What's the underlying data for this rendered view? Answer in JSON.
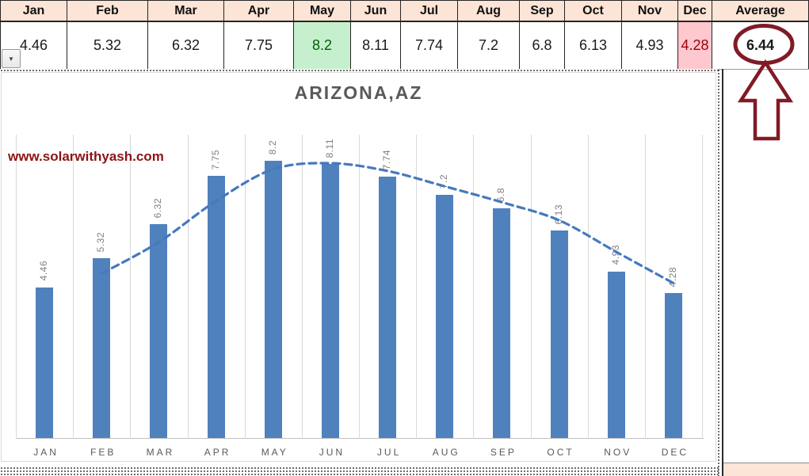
{
  "spreadsheet": {
    "header_row": [
      "Jan",
      "Feb",
      "Mar",
      "Apr",
      "May",
      "Jun",
      "Jul",
      "Aug",
      "Sep",
      "Oct",
      "Nov",
      "Dec",
      "Average"
    ],
    "value_row": [
      "4.46",
      "5.32",
      "6.32",
      "7.75",
      "8.2",
      "8.11",
      "7.74",
      "7.2",
      "6.8",
      "6.13",
      "4.93",
      "4.28",
      "6.44"
    ],
    "header_bg": "#FCE4D6",
    "max_cell": {
      "month": "May",
      "value": "8.2",
      "bg": "#C6EFCE",
      "text_color": "#006100"
    },
    "min_cell": {
      "month": "Dec",
      "value": "4.28",
      "bg": "#FFC7CE",
      "text_color": "#9C0006"
    },
    "average_label": "Average",
    "average_value": "6.44"
  },
  "chart_data": {
    "type": "bar",
    "title": "ARIZONA,AZ",
    "categories": [
      "JAN",
      "FEB",
      "MAR",
      "APR",
      "MAY",
      "JUN",
      "JUL",
      "AUG",
      "SEP",
      "OCT",
      "NOV",
      "DEC"
    ],
    "values": [
      4.46,
      5.32,
      6.32,
      7.75,
      8.2,
      8.11,
      7.74,
      7.2,
      6.8,
      6.13,
      4.93,
      4.28
    ],
    "data_labels": [
      "4.46",
      "5.32",
      "6.32",
      "7.75",
      "8.2",
      "8.11",
      "7.74",
      "7.2",
      "6.8",
      "6.13",
      "4.93",
      "4.28"
    ],
    "ylim": [
      0,
      9
    ],
    "xlabel": "",
    "ylabel": "",
    "gridlines": "vertical-only",
    "legend": "none",
    "bar_color": "#4F81BD",
    "label_color": "#7F7F7F",
    "title_color": "#595959",
    "trendline": {
      "type": "moving_average",
      "period": 2,
      "style": "dashed",
      "color": "#4679BD"
    },
    "watermark": "www.solarwithyash.com",
    "watermark_color": "#8B1414"
  },
  "annotations": {
    "circled_value": "6.44",
    "arrow_direction": "up",
    "shape_color": "#801B25"
  },
  "controls": {
    "filter_dropdown_glyph": "▼"
  }
}
